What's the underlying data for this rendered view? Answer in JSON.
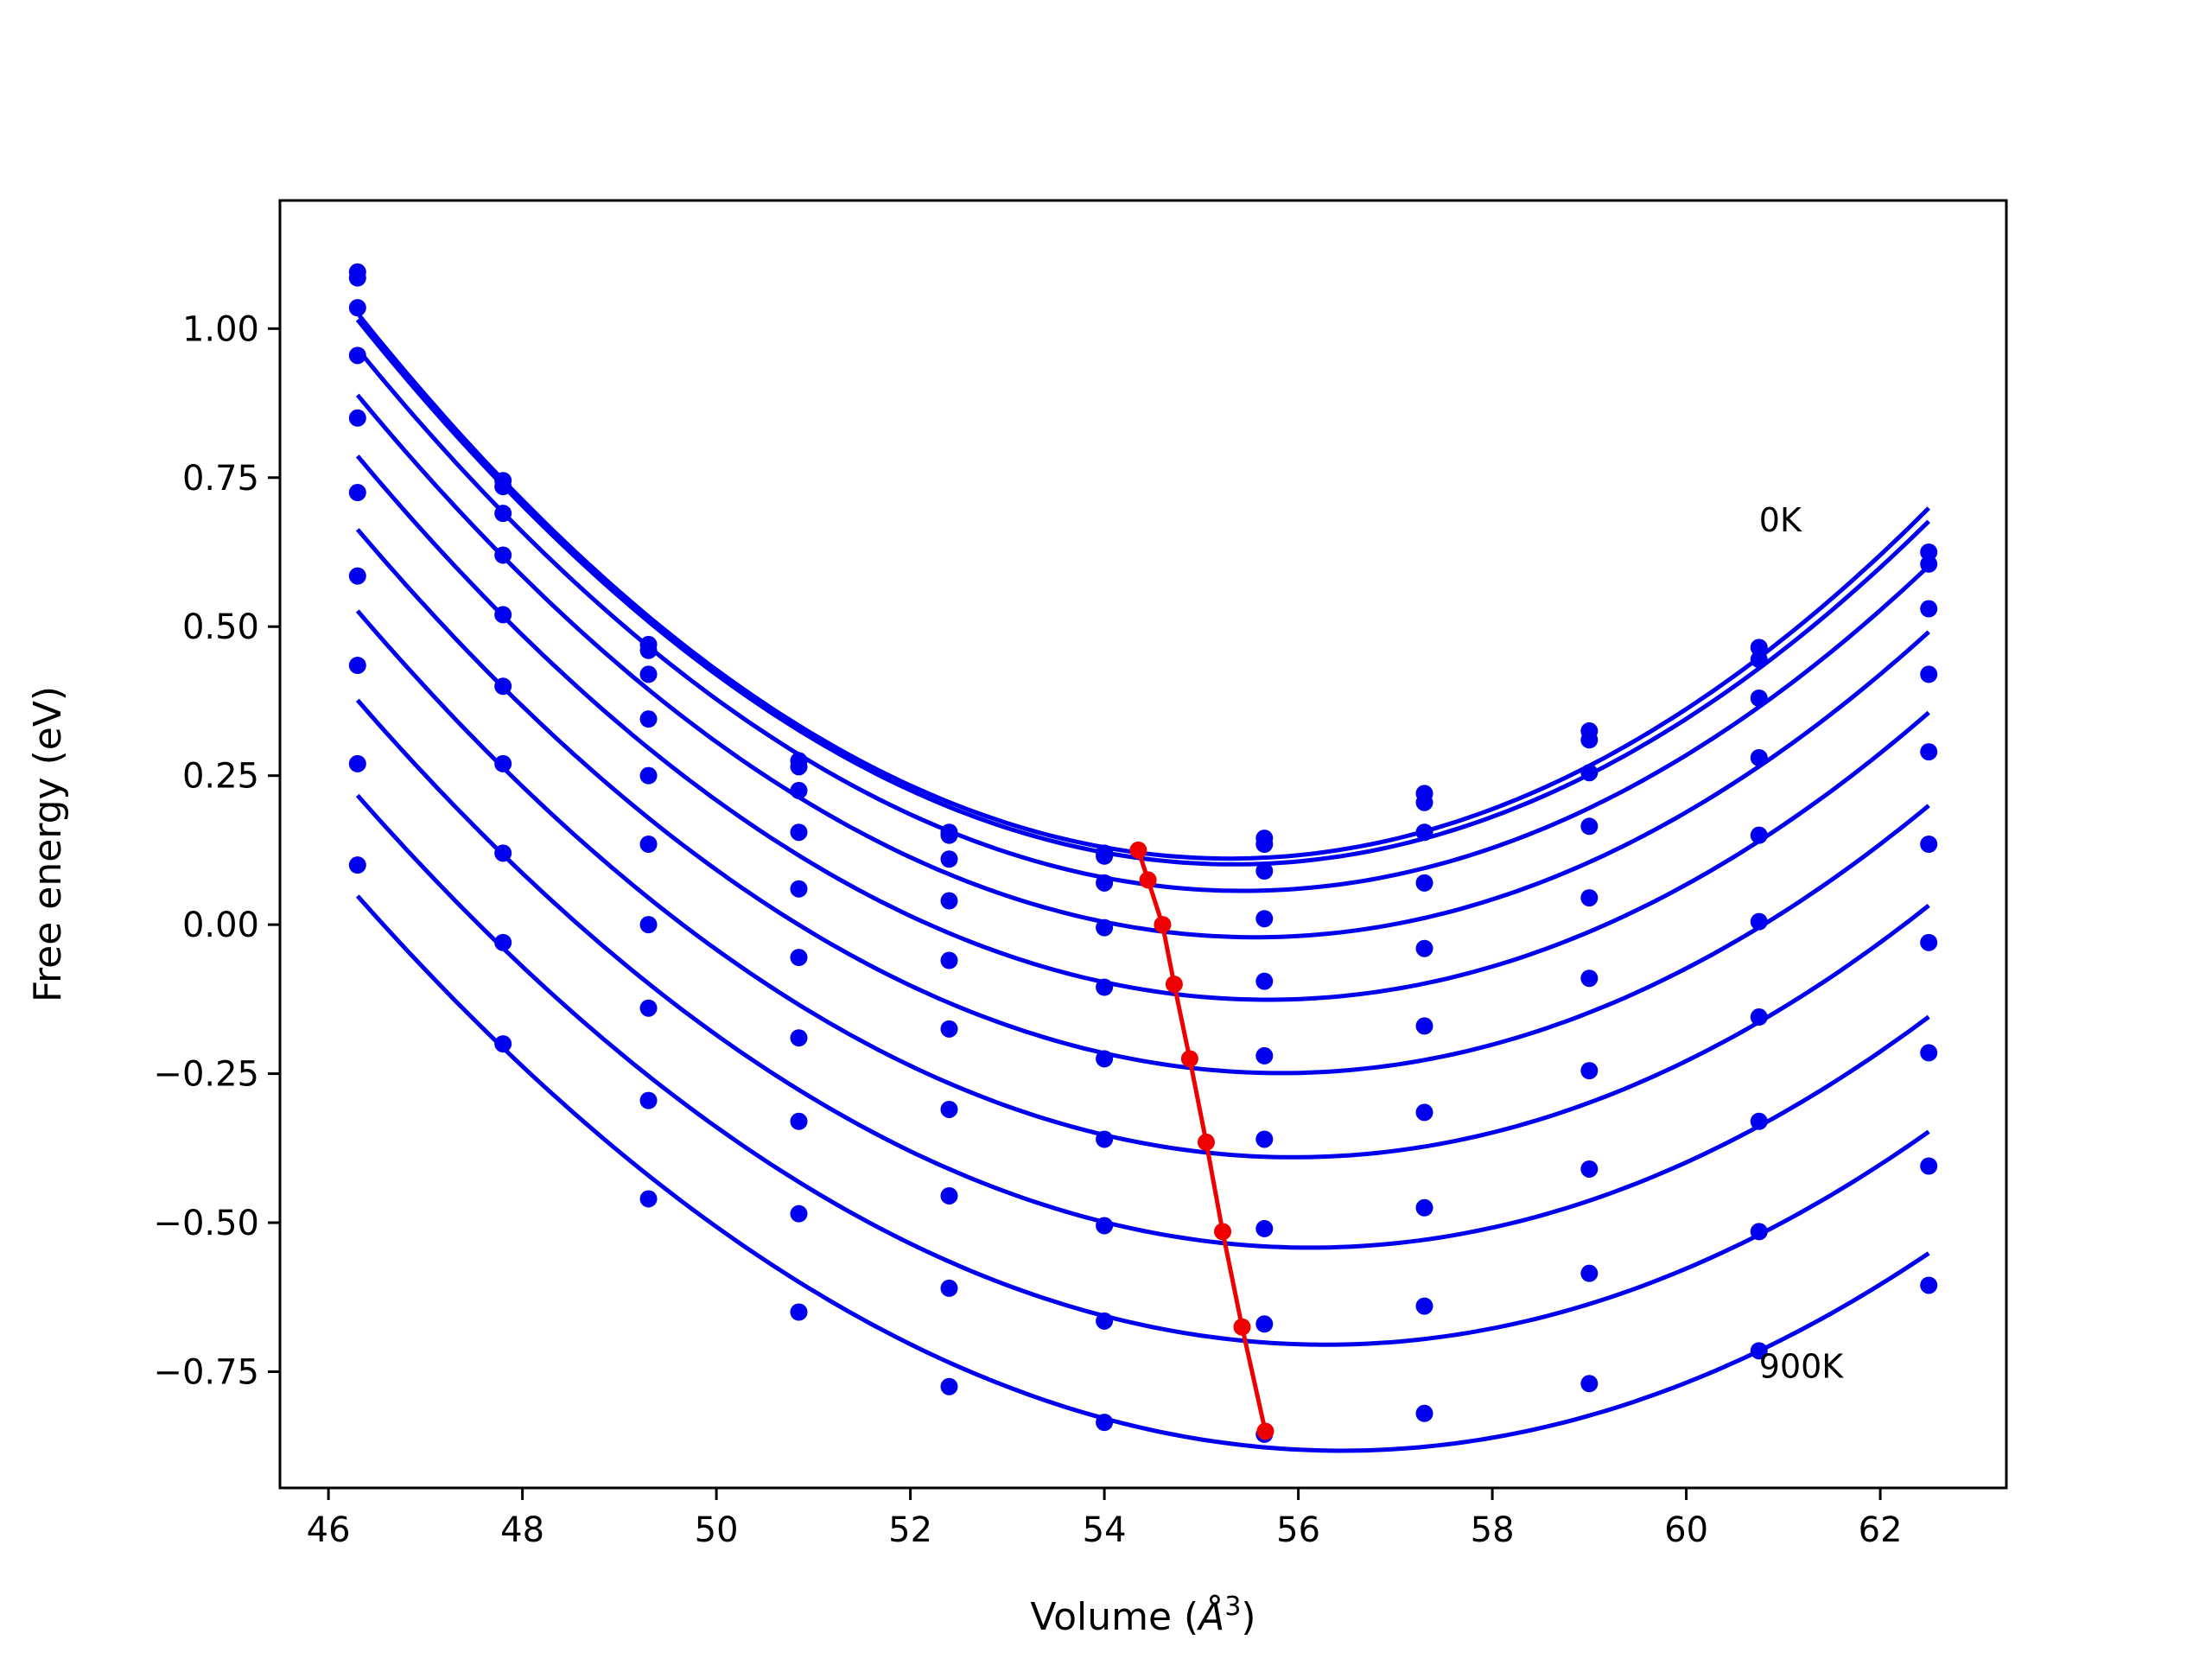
{
  "chart_data": {
    "type": "line",
    "title": "",
    "xlabel": "Volume (",
    "xlabel_symbol": "Å",
    "xlabel_exponent": "3",
    "xlabel_close": ")",
    "ylabel": "Free energy (eV)",
    "xlim": [
      45.5,
      63.3
    ],
    "ylim": [
      -0.945,
      1.215
    ],
    "x_ticks": [
      46,
      48,
      50,
      52,
      54,
      56,
      58,
      60,
      62
    ],
    "x_tick_labels": [
      "46",
      "48",
      "50",
      "52",
      "54",
      "56",
      "58",
      "60",
      "62"
    ],
    "y_ticks": [
      1.0,
      0.75,
      0.5,
      0.25,
      0.0,
      -0.25,
      -0.5,
      -0.75
    ],
    "y_tick_labels": [
      "1.00",
      "0.75",
      "0.50",
      "0.25",
      "0.00",
      "−0.25",
      "−0.50",
      "−0.75"
    ],
    "grid": false,
    "legend": "none",
    "annotations": [
      {
        "text": "0K",
        "x": 60.75,
        "y": 0.68
      },
      {
        "text": "900K",
        "x": 60.75,
        "y": -0.74
      }
    ],
    "volumes": [
      46.3,
      47.8,
      49.3,
      50.85,
      52.4,
      54.0,
      55.65,
      57.3,
      59.0,
      60.75,
      62.5
    ],
    "series": [
      {
        "values": [
          1.095,
          0.745,
          0.47,
          0.275,
          0.155,
          0.12,
          0.145,
          0.22,
          0.325,
          0.465,
          0.625
        ]
      },
      {
        "values": [
          1.085,
          0.735,
          0.46,
          0.265,
          0.15,
          0.115,
          0.135,
          0.205,
          0.31,
          0.445,
          0.605
        ]
      },
      {
        "values": [
          1.035,
          0.69,
          0.42,
          0.225,
          0.11,
          0.07,
          0.09,
          0.155,
          0.255,
          0.38,
          0.53
        ]
      },
      {
        "values": [
          0.955,
          0.62,
          0.345,
          0.155,
          0.04,
          -0.005,
          0.01,
          0.07,
          0.165,
          0.28,
          0.42
        ]
      },
      {
        "values": [
          0.85,
          0.52,
          0.25,
          0.06,
          -0.06,
          -0.105,
          -0.095,
          -0.04,
          0.045,
          0.15,
          0.29
        ]
      },
      {
        "values": [
          0.725,
          0.4,
          0.135,
          -0.055,
          -0.175,
          -0.225,
          -0.22,
          -0.17,
          -0.09,
          0.005,
          0.135
        ]
      },
      {
        "values": [
          0.585,
          0.27,
          0.0,
          -0.19,
          -0.31,
          -0.36,
          -0.36,
          -0.315,
          -0.245,
          -0.155,
          -0.03
        ]
      },
      {
        "values": [
          0.435,
          0.12,
          -0.14,
          -0.33,
          -0.455,
          -0.505,
          -0.51,
          -0.475,
          -0.41,
          -0.33,
          -0.215
        ]
      },
      {
        "values": [
          0.27,
          -0.03,
          -0.295,
          -0.485,
          -0.61,
          -0.665,
          -0.67,
          -0.64,
          -0.585,
          -0.515,
          -0.405
        ]
      },
      {
        "values": [
          0.1,
          -0.2,
          -0.46,
          -0.65,
          -0.775,
          -0.835,
          -0.855,
          -0.82,
          -0.77,
          -0.715,
          -0.605
        ]
      }
    ],
    "minimum_line": {
      "x": [
        54.35,
        54.45,
        54.6,
        54.72,
        54.88,
        55.05,
        55.22,
        55.42,
        55.66
      ],
      "y": [
        0.125,
        0.075,
        0.0,
        -0.1,
        -0.225,
        -0.365,
        -0.515,
        -0.675,
        -0.85
      ]
    },
    "colors": {
      "curves": "#0000ee",
      "minimum_line": "#ee0000",
      "axes": "#000000"
    }
  }
}
